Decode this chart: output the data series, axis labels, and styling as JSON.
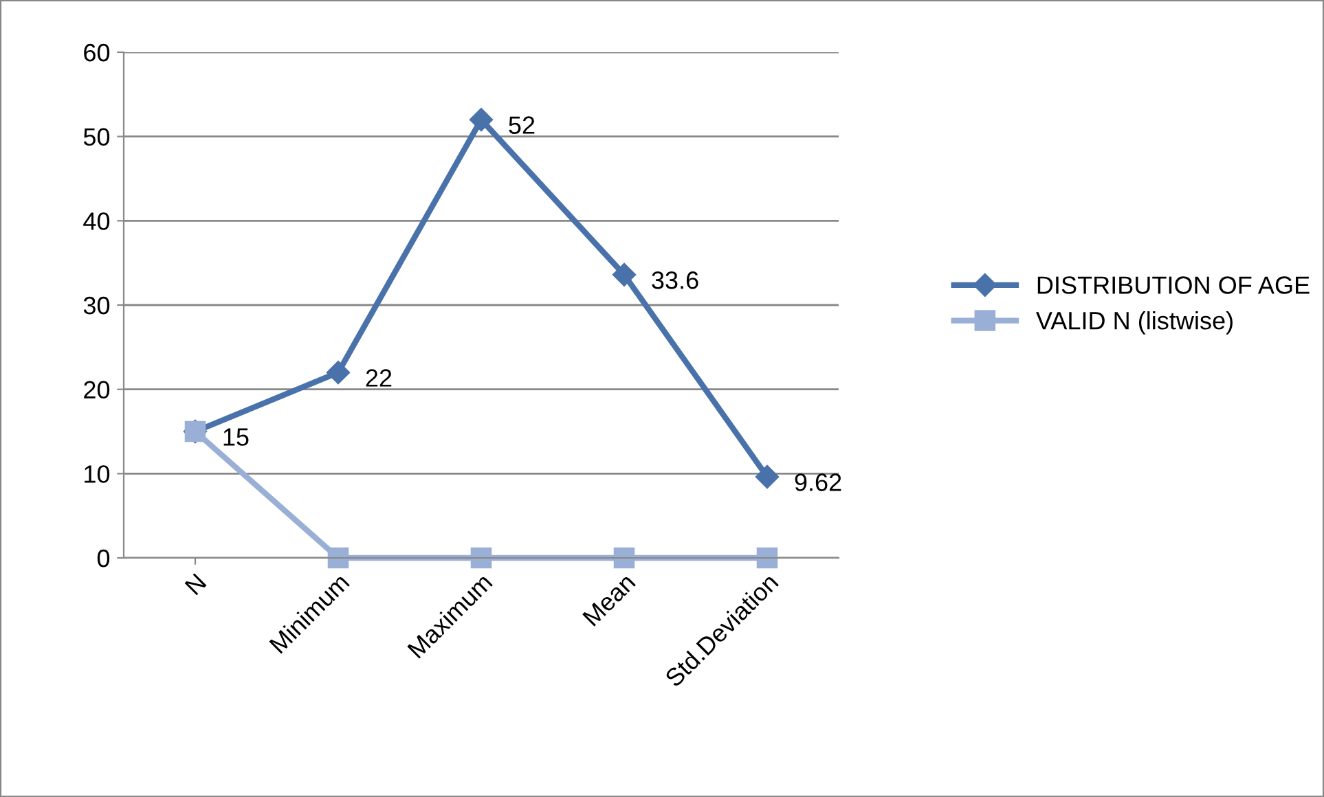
{
  "chart_data": {
    "type": "line",
    "categories": [
      "N",
      "Minimum",
      "Maximum",
      "Mean",
      "Std.Deviation"
    ],
    "series": [
      {
        "name": "DISTRIBUTION OF AGE",
        "color": "#4a72aa",
        "marker": "diamond",
        "values": [
          15,
          22,
          52,
          33.6,
          9.62
        ],
        "value_labels": [
          "15",
          "22",
          "52",
          "33.6",
          "9.62"
        ]
      },
      {
        "name": "VALID N (listwise)",
        "color": "#9aafd6",
        "marker": "square",
        "values": [
          15,
          0,
          0,
          0,
          0
        ]
      }
    ],
    "ylim": [
      0,
      60
    ],
    "yticks": [
      0,
      10,
      20,
      30,
      40,
      50,
      60
    ],
    "grid": "y",
    "legend": "right",
    "line_style": "solid"
  }
}
